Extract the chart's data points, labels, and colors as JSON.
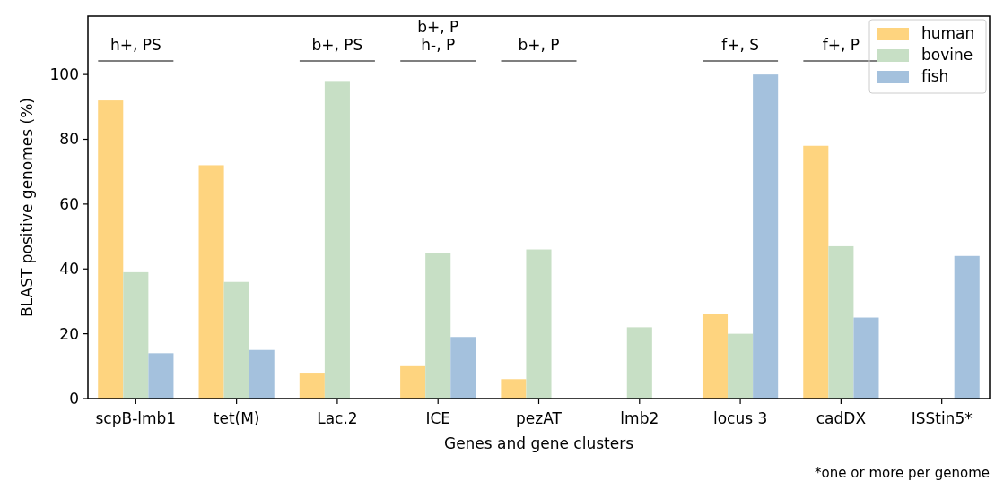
{
  "chart_data": {
    "type": "bar",
    "xlabel": "Genes and gene clusters",
    "ylabel": "BLAST positive genomes (%)",
    "categories": [
      "scpB-lmb1",
      "tet(M)",
      "Lac.2",
      "ICE",
      "pezAT",
      "lmb2",
      "locus 3",
      "cadDX",
      "ISStin5*"
    ],
    "series": [
      {
        "name": "human",
        "color": "#fed47f",
        "values": [
          92,
          72,
          8,
          10,
          6,
          0,
          26,
          78,
          0
        ]
      },
      {
        "name": "bovine",
        "color": "#c7dfc5",
        "values": [
          39,
          36,
          98,
          45,
          46,
          22,
          20,
          47,
          0
        ]
      },
      {
        "name": "fish",
        "color": "#a4c1dd",
        "values": [
          14,
          15,
          0,
          19,
          0,
          0,
          100,
          25,
          44
        ]
      }
    ],
    "ylim": [
      0,
      118
    ],
    "yticks": [
      0,
      20,
      40,
      60,
      80,
      100
    ],
    "grid": false,
    "legend": "top right",
    "annotations": [
      "h+, PS",
      "b+, PS",
      "b+, P\nh-, P",
      "b+, P",
      "f+, S",
      "f+, P",
      "*one or more per genome"
    ]
  }
}
